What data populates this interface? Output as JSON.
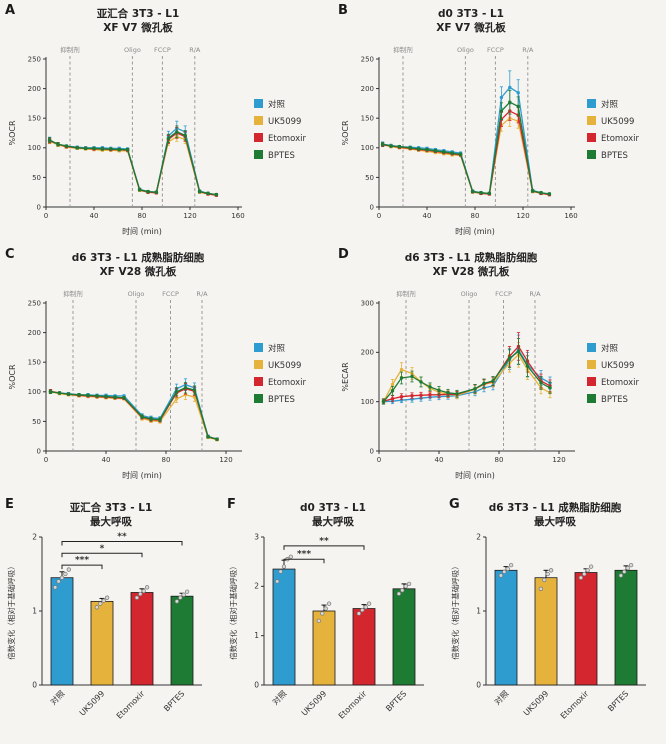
{
  "colors": {
    "control": "#2f9cd0",
    "uk5099": "#e5b33b",
    "etomoxir": "#d4262e",
    "bptes": "#1e7b33",
    "dashed": "#9a9a9a",
    "axis": "#333333",
    "error_bar": "#111111",
    "scatter_dot_fill": "#d8d8d8",
    "scatter_dot_stroke": "#777777",
    "background": "#f6f4f1"
  },
  "series_names": [
    "对照",
    "UK5099",
    "Etomoxir",
    "BPTES"
  ],
  "panels": [
    {
      "letter": "A",
      "title1": "亚汇合 3T3 - L1",
      "title2": "XF V7 微孔板"
    },
    {
      "letter": "B",
      "title1": "d0 3T3 - L1",
      "title2": "XF V7 微孔板"
    },
    {
      "letter": "C",
      "title1": "d6 3T3 - L1 成熟脂肪细胞",
      "title2": "XF V28 微孔板"
    },
    {
      "letter": "D",
      "title1": "d6 3T3 - L1 成熟脂肪细胞",
      "title2": "XF V28 微孔板"
    },
    {
      "letter": "E",
      "title1": "亚汇合 3T3 - L1",
      "title2": "最大呼吸"
    },
    {
      "letter": "F",
      "title1": "d0 3T3 - L1",
      "title2": "最大呼吸"
    },
    {
      "letter": "G",
      "title1": "d6 3T3 - L1 成熟脂肪细胞",
      "title2": "最大呼吸"
    }
  ],
  "chart_data": [
    {
      "type": "line",
      "title": "亚汇合 3T3 - L1 XF V7 微孔板",
      "xlabel": "时间 (min)",
      "ylabel": "%OCR",
      "xlim": [
        0,
        160
      ],
      "xticks": [
        0,
        40,
        80,
        120,
        160
      ],
      "ylim": [
        0,
        250
      ],
      "yticks": [
        0,
        50,
        100,
        150,
        200,
        250
      ],
      "injections": [
        {
          "label": "抑制剂",
          "t": 20
        },
        {
          "label": "Oligo",
          "t": 72
        },
        {
          "label": "FCCP",
          "t": 97
        },
        {
          "label": "R/A",
          "t": 124
        }
      ],
      "x": [
        3,
        10,
        17,
        26,
        33,
        40,
        47,
        54,
        61,
        68,
        78,
        85,
        92,
        102,
        109,
        116,
        128,
        135,
        142
      ],
      "series": [
        {
          "name": "对照",
          "color": "control",
          "y": [
            113,
            106,
            103,
            101,
            100,
            100,
            100,
            99,
            99,
            98,
            30,
            26,
            25,
            120,
            133,
            127,
            27,
            23,
            21
          ],
          "err": [
            5,
            3,
            2,
            2,
            2,
            2,
            2,
            2,
            2,
            2,
            2,
            2,
            2,
            8,
            12,
            10,
            2,
            2,
            2
          ]
        },
        {
          "name": "UK5099",
          "color": "uk5099",
          "y": [
            111,
            105,
            101,
            99,
            98,
            97,
            96,
            96,
            95,
            95,
            28,
            25,
            24,
            110,
            119,
            114,
            25,
            22,
            20
          ],
          "err": [
            4,
            3,
            2,
            2,
            2,
            2,
            2,
            2,
            2,
            2,
            2,
            2,
            2,
            6,
            8,
            7,
            2,
            2,
            2
          ]
        },
        {
          "name": "Etomoxir",
          "color": "etomoxir",
          "y": [
            112,
            106,
            102,
            100,
            99,
            98,
            98,
            97,
            97,
            96,
            29,
            25,
            24,
            114,
            125,
            119,
            26,
            22,
            20
          ],
          "err": [
            4,
            3,
            2,
            2,
            2,
            2,
            2,
            2,
            2,
            2,
            2,
            2,
            2,
            7,
            9,
            8,
            2,
            2,
            2
          ]
        },
        {
          "name": "BPTES",
          "color": "bptes",
          "y": [
            113,
            106,
            103,
            100,
            99,
            99,
            98,
            98,
            97,
            97,
            29,
            26,
            25,
            116,
            127,
            121,
            26,
            23,
            21
          ],
          "err": [
            4,
            3,
            2,
            2,
            2,
            2,
            2,
            2,
            2,
            2,
            2,
            2,
            2,
            7,
            10,
            8,
            2,
            2,
            2
          ]
        }
      ],
      "legend_position": "right"
    },
    {
      "type": "line",
      "title": "d0 3T3 - L1 XF V7 微孔板",
      "xlabel": "时间 (min)",
      "ylabel": "%OCR",
      "xlim": [
        0,
        160
      ],
      "xticks": [
        0,
        40,
        80,
        120,
        160
      ],
      "ylim": [
        0,
        250
      ],
      "yticks": [
        0,
        50,
        100,
        150,
        200,
        250
      ],
      "injections": [
        {
          "label": "抑制剂",
          "t": 20
        },
        {
          "label": "Oligo",
          "t": 72
        },
        {
          "label": "FCCP",
          "t": 97
        },
        {
          "label": "R/A",
          "t": 124
        }
      ],
      "x": [
        3,
        10,
        17,
        26,
        33,
        40,
        47,
        54,
        61,
        68,
        78,
        85,
        92,
        102,
        109,
        116,
        128,
        135,
        142
      ],
      "series": [
        {
          "name": "对照",
          "color": "control",
          "y": [
            106,
            104,
            102,
            101,
            100,
            99,
            97,
            95,
            93,
            91,
            27,
            24,
            23,
            185,
            202,
            193,
            28,
            24,
            22
          ],
          "err": [
            4,
            2,
            2,
            2,
            2,
            2,
            2,
            2,
            2,
            2,
            2,
            2,
            2,
            18,
            28,
            22,
            2,
            2,
            2
          ]
        },
        {
          "name": "UK5099",
          "color": "uk5099",
          "y": [
            105,
            102,
            100,
            98,
            96,
            94,
            92,
            90,
            88,
            87,
            25,
            23,
            22,
            138,
            150,
            145,
            26,
            23,
            21
          ],
          "err": [
            3,
            2,
            2,
            2,
            2,
            2,
            2,
            2,
            2,
            2,
            2,
            2,
            2,
            10,
            14,
            12,
            2,
            2,
            2
          ]
        },
        {
          "name": "Etomoxir",
          "color": "etomoxir",
          "y": [
            105,
            103,
            101,
            99,
            97,
            96,
            94,
            92,
            90,
            88,
            26,
            23,
            22,
            148,
            162,
            155,
            27,
            23,
            21
          ],
          "err": [
            3,
            2,
            2,
            2,
            2,
            2,
            2,
            2,
            2,
            2,
            2,
            2,
            2,
            12,
            16,
            13,
            2,
            2,
            2
          ]
        },
        {
          "name": "BPTES",
          "color": "bptes",
          "y": [
            106,
            103,
            102,
            100,
            98,
            97,
            95,
            93,
            91,
            89,
            26,
            24,
            23,
            162,
            177,
            170,
            27,
            24,
            22
          ],
          "err": [
            3,
            2,
            2,
            2,
            2,
            2,
            2,
            2,
            2,
            2,
            2,
            2,
            2,
            14,
            20,
            16,
            2,
            2,
            2
          ]
        }
      ],
      "legend_position": "right"
    },
    {
      "type": "line",
      "title": "d6 3T3 - L1 成熟脂肪细胞 XF V28 微孔板",
      "xlabel": "时间 (min)",
      "ylabel": "%OCR",
      "xlim": [
        0,
        128
      ],
      "xticks": [
        0,
        40,
        80,
        120
      ],
      "ylim": [
        0,
        250
      ],
      "yticks": [
        0,
        50,
        100,
        150,
        200,
        250
      ],
      "injections": [
        {
          "label": "抑制剂",
          "t": 18
        },
        {
          "label": "Oligo",
          "t": 60
        },
        {
          "label": "FCCP",
          "t": 83
        },
        {
          "label": "R/A",
          "t": 104
        }
      ],
      "x": [
        3,
        9,
        15,
        22,
        28,
        34,
        40,
        46,
        52,
        64,
        70,
        76,
        87,
        93,
        99,
        108,
        114
      ],
      "series": [
        {
          "name": "对照",
          "color": "control",
          "y": [
            100,
            98,
            97,
            95,
            95,
            94,
            94,
            93,
            93,
            60,
            56,
            55,
            105,
            112,
            107,
            25,
            20
          ],
          "err": [
            3,
            2,
            2,
            2,
            2,
            2,
            2,
            2,
            2,
            3,
            3,
            3,
            8,
            10,
            8,
            2,
            2
          ]
        },
        {
          "name": "UK5099",
          "color": "uk5099",
          "y": [
            100,
            97,
            95,
            93,
            92,
            91,
            90,
            89,
            88,
            55,
            51,
            50,
            88,
            95,
            91,
            23,
            19
          ],
          "err": [
            3,
            2,
            2,
            2,
            2,
            2,
            2,
            2,
            2,
            3,
            3,
            3,
            6,
            8,
            7,
            2,
            2
          ]
        },
        {
          "name": "Etomoxir",
          "color": "etomoxir",
          "y": [
            101,
            98,
            96,
            94,
            93,
            92,
            91,
            90,
            89,
            57,
            53,
            52,
            98,
            105,
            101,
            24,
            20
          ],
          "err": [
            3,
            2,
            2,
            2,
            2,
            2,
            2,
            2,
            2,
            3,
            3,
            3,
            7,
            9,
            7,
            2,
            2
          ]
        },
        {
          "name": "BPTES",
          "color": "bptes",
          "y": [
            100,
            98,
            96,
            95,
            94,
            93,
            92,
            91,
            90,
            58,
            54,
            53,
            100,
            107,
            103,
            24,
            20
          ],
          "err": [
            3,
            2,
            2,
            2,
            2,
            2,
            2,
            2,
            2,
            3,
            3,
            3,
            7,
            9,
            7,
            2,
            2
          ]
        }
      ],
      "legend_position": "right"
    },
    {
      "type": "line",
      "title": "d6 3T3 - L1 成熟脂肪细胞 XF V28 微孔板",
      "xlabel": "时间 (min)",
      "ylabel": "%ECAR",
      "xlim": [
        0,
        128
      ],
      "xticks": [
        0,
        40,
        80,
        120
      ],
      "ylim": [
        0,
        300
      ],
      "yticks": [
        0,
        100,
        200,
        300
      ],
      "injections": [
        {
          "label": "抑制剂",
          "t": 18
        },
        {
          "label": "Oligo",
          "t": 60
        },
        {
          "label": "FCCP",
          "t": 83
        },
        {
          "label": "R/A",
          "t": 104
        }
      ],
      "x": [
        3,
        9,
        15,
        22,
        28,
        34,
        40,
        46,
        52,
        64,
        70,
        76,
        87,
        93,
        99,
        108,
        114
      ],
      "series": [
        {
          "name": "对照",
          "color": "control",
          "y": [
            100,
            101,
            103,
            105,
            107,
            109,
            110,
            111,
            112,
            120,
            128,
            132,
            185,
            205,
            175,
            148,
            138
          ],
          "err": [
            5,
            5,
            5,
            6,
            6,
            6,
            6,
            6,
            6,
            8,
            8,
            8,
            20,
            30,
            25,
            15,
            12
          ]
        },
        {
          "name": "UK5099",
          "color": "uk5099",
          "y": [
            100,
            135,
            165,
            157,
            140,
            127,
            119,
            115,
            113,
            125,
            135,
            139,
            178,
            195,
            165,
            128,
            118
          ],
          "err": [
            5,
            10,
            14,
            12,
            10,
            8,
            7,
            7,
            7,
            9,
            9,
            9,
            18,
            25,
            20,
            12,
            10
          ]
        },
        {
          "name": "Etomoxir",
          "color": "etomoxir",
          "y": [
            101,
            106,
            110,
            112,
            113,
            114,
            114,
            115,
            115,
            126,
            136,
            141,
            192,
            212,
            182,
            142,
            132
          ],
          "err": [
            5,
            6,
            6,
            6,
            6,
            6,
            6,
            6,
            6,
            8,
            9,
            9,
            20,
            28,
            22,
            14,
            12
          ]
        },
        {
          "name": "BPTES",
          "color": "bptes",
          "y": [
            100,
            122,
            148,
            151,
            140,
            130,
            123,
            118,
            116,
            126,
            137,
            142,
            188,
            202,
            172,
            138,
            128
          ],
          "err": [
            5,
            9,
            12,
            11,
            10,
            8,
            8,
            7,
            7,
            9,
            9,
            9,
            19,
            26,
            21,
            13,
            11
          ]
        }
      ],
      "legend_position": "right"
    },
    {
      "type": "bar",
      "title": "亚汇合 3T3 - L1 最大呼吸",
      "ylabel": "倍数变化（相对于基础呼吸）",
      "categories": [
        "对照",
        "UK5099",
        "Etomoxir",
        "BPTES"
      ],
      "values": [
        1.45,
        1.13,
        1.25,
        1.2
      ],
      "errors": [
        0.08,
        0.04,
        0.05,
        0.04
      ],
      "points": [
        [
          1.32,
          1.4,
          1.45,
          1.5,
          1.56
        ],
        [
          1.05,
          1.1,
          1.14,
          1.18
        ],
        [
          1.18,
          1.23,
          1.27,
          1.32
        ],
        [
          1.13,
          1.18,
          1.22,
          1.26
        ]
      ],
      "colors": [
        "control",
        "uk5099",
        "etomoxir",
        "bptes"
      ],
      "ylim": [
        0,
        2
      ],
      "yticks": [
        0,
        1,
        2
      ],
      "significance": [
        {
          "from": 0,
          "to": 1,
          "label": "***",
          "y": 1.62
        },
        {
          "from": 0,
          "to": 2,
          "label": "*",
          "y": 1.78
        },
        {
          "from": 0,
          "to": 3,
          "label": "**",
          "y": 1.94
        }
      ]
    },
    {
      "type": "bar",
      "title": "d0 3T3 - L1 最大呼吸",
      "ylabel": "倍数变化（相对于基础呼吸）",
      "categories": [
        "对照",
        "UK5099",
        "Etomoxir",
        "BPTES"
      ],
      "values": [
        2.35,
        1.5,
        1.55,
        1.95
      ],
      "errors": [
        0.18,
        0.12,
        0.08,
        0.1
      ],
      "points": [
        [
          2.1,
          2.3,
          2.4,
          2.55,
          2.6
        ],
        [
          1.3,
          1.45,
          1.55,
          1.65
        ],
        [
          1.45,
          1.52,
          1.58,
          1.65
        ],
        [
          1.85,
          1.92,
          2.0,
          2.05
        ]
      ],
      "colors": [
        "control",
        "uk5099",
        "etomoxir",
        "bptes"
      ],
      "ylim": [
        0,
        3
      ],
      "yticks": [
        0,
        1,
        2,
        3
      ],
      "significance": [
        {
          "from": 0,
          "to": 1,
          "label": "***",
          "y": 2.55
        },
        {
          "from": 0,
          "to": 2,
          "label": "**",
          "y": 2.82
        }
      ]
    },
    {
      "type": "bar",
      "title": "d6 3T3 - L1 成熟脂肪细胞 最大呼吸",
      "ylabel": "倍数变化（相对于基础呼吸）",
      "categories": [
        "对照",
        "UK5099",
        "Etomoxir",
        "BPTES"
      ],
      "values": [
        1.55,
        1.45,
        1.52,
        1.55
      ],
      "errors": [
        0.05,
        0.1,
        0.05,
        0.06
      ],
      "points": [
        [
          1.48,
          1.53,
          1.57,
          1.62
        ],
        [
          1.3,
          1.42,
          1.5,
          1.55
        ],
        [
          1.45,
          1.5,
          1.55,
          1.6
        ],
        [
          1.48,
          1.53,
          1.58,
          1.62
        ]
      ],
      "colors": [
        "control",
        "uk5099",
        "etomoxir",
        "bptes"
      ],
      "ylim": [
        0,
        2
      ],
      "yticks": [
        0,
        1,
        2
      ],
      "significance": []
    }
  ]
}
